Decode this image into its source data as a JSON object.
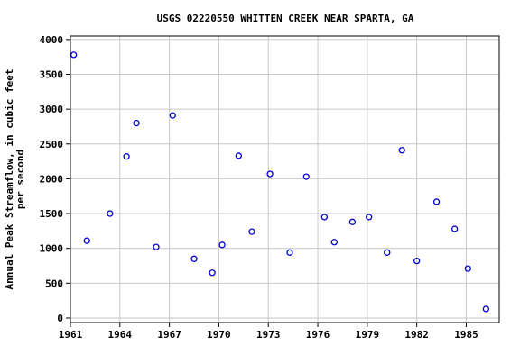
{
  "chart_data": {
    "type": "scatter",
    "title": "USGS 02220550 WHITTEN CREEK NEAR SPARTA, GA",
    "y_label": [
      "Annual Peak Streamflow, in cubic feet",
      "per second"
    ],
    "color": "#0000cc",
    "grid": true,
    "x": [
      1961.2,
      1962.0,
      1963.4,
      1964.4,
      1965.0,
      1966.2,
      1967.2,
      1968.5,
      1969.6,
      1970.2,
      1971.2,
      1972.0,
      1973.1,
      1974.3,
      1975.3,
      1976.4,
      1977.0,
      1978.1,
      1979.1,
      1980.2,
      1981.1,
      1982.0,
      1983.2,
      1984.3,
      1985.1,
      1986.2
    ],
    "values": [
      3780,
      1110,
      1500,
      2320,
      2800,
      1020,
      2910,
      850,
      650,
      1050,
      2330,
      1240,
      2070,
      940,
      2030,
      1450,
      1090,
      1380,
      1450,
      940,
      2410,
      820,
      1670,
      1280,
      710,
      130
    ],
    "xlim": [
      1961,
      1987
    ],
    "xticks": [
      1961,
      1964,
      1967,
      1970,
      1973,
      1976,
      1979,
      1982,
      1985
    ],
    "ylim": [
      -65,
      4050
    ],
    "yticks": [
      0,
      500,
      1000,
      1500,
      2000,
      2500,
      3000,
      3500,
      4000
    ]
  }
}
